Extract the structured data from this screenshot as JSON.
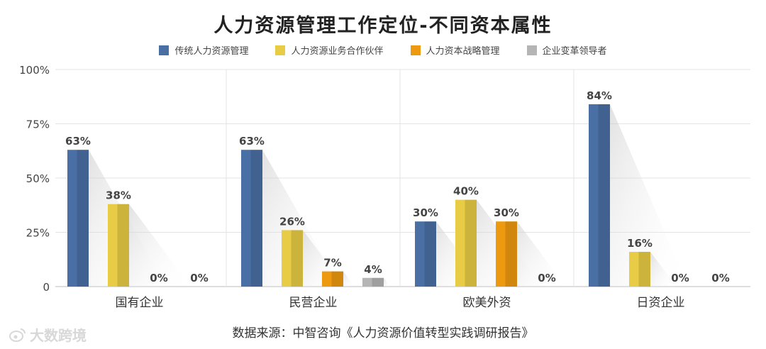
{
  "chart_data": {
    "type": "bar",
    "title": "人力资源管理工作定位-不同资本属性",
    "categories": [
      "国有企业",
      "民营企业",
      "欧美外资",
      "日资企业"
    ],
    "series": [
      {
        "name": "传统人力资源管理",
        "color": "#4a6fa5",
        "values": [
          63,
          63,
          30,
          84
        ],
        "labels": [
          "63%",
          "63%",
          "30%",
          "84%"
        ]
      },
      {
        "name": "人力资源业务合作伙伴",
        "color": "#e8cc45",
        "values": [
          38,
          26,
          40,
          16
        ],
        "labels": [
          "38%",
          "26%",
          "40%",
          "16%"
        ]
      },
      {
        "name": "人力资本战略管理",
        "color": "#ee9a10",
        "values": [
          0,
          7,
          30,
          0
        ],
        "labels": [
          "0%",
          "7%",
          "30%",
          "0%"
        ]
      },
      {
        "name": "企业变革领导者",
        "color": "#b5b5b5",
        "values": [
          0,
          4,
          0,
          0
        ],
        "labels": [
          "0%",
          "4%",
          "0%",
          "0%"
        ]
      }
    ],
    "ylim": [
      0,
      100
    ],
    "yticks": [
      0,
      25,
      50,
      75,
      100
    ],
    "ytick_labels": [
      "0",
      "25%",
      "50%",
      "75%",
      "100%"
    ],
    "grid": true,
    "legend_position": "top"
  },
  "source_text": "数据来源：中智咨询《人力资源价值转型实践调研报告》",
  "watermark": {
    "icon": "weibo-icon",
    "text": "大数跨境"
  }
}
